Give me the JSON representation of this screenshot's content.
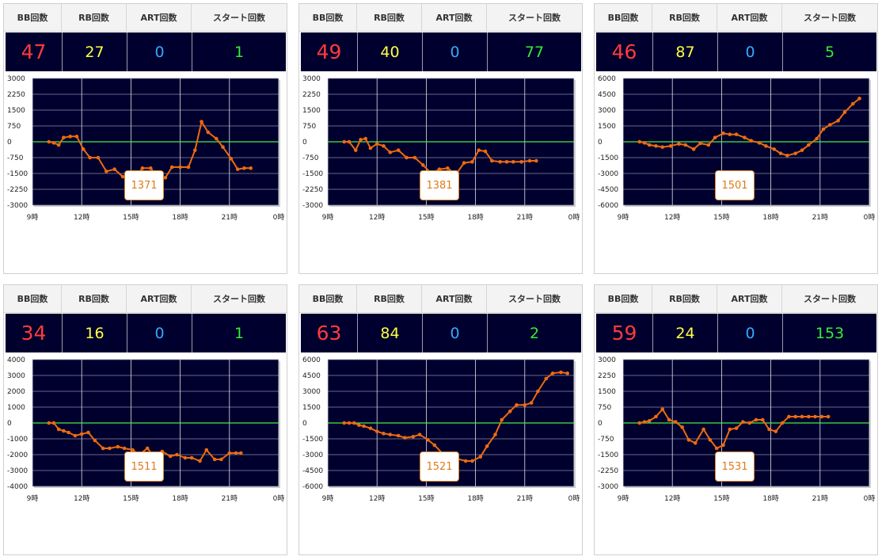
{
  "headers": [
    "BB回数",
    "RB回数",
    "ART回数",
    "スタート回数"
  ],
  "x_tick_labels": [
    "9時",
    "12時",
    "15時",
    "18時",
    "21時",
    "0時"
  ],
  "colors": {
    "panel_bg": "#00002e",
    "bb": "#ff3b3b",
    "rb": "#ffff44",
    "art": "#33aaff",
    "start": "#33ee33",
    "line": "#ee6a10",
    "zero_line": "#44ee44",
    "button": "#e07a1a"
  },
  "machines": [
    {
      "id": "1371",
      "bb": "47",
      "rb": "27",
      "art": "0",
      "start": "1"
    },
    {
      "id": "1381",
      "bb": "49",
      "rb": "40",
      "art": "0",
      "start": "77"
    },
    {
      "id": "1501",
      "bb": "46",
      "rb": "87",
      "art": "0",
      "start": "5"
    },
    {
      "id": "1511",
      "bb": "34",
      "rb": "16",
      "art": "0",
      "start": "1"
    },
    {
      "id": "1521",
      "bb": "63",
      "rb": "84",
      "art": "0",
      "start": "2"
    },
    {
      "id": "1531",
      "bb": "59",
      "rb": "24",
      "art": "0",
      "start": "153"
    }
  ],
  "chart_data": [
    {
      "type": "line",
      "xlabel": "",
      "ylabel": "",
      "x_range_hours": [
        9,
        24
      ],
      "ylim": [
        -3000,
        3000
      ],
      "y_ticks": [
        3000,
        2250,
        1500,
        750,
        0,
        -750,
        -1500,
        -2250,
        -3000
      ],
      "x": [
        10,
        10.3,
        10.6,
        10.9,
        11.3,
        11.7,
        12.1,
        12.5,
        13,
        13.5,
        14,
        14.5,
        15,
        15.3,
        15.7,
        16.2,
        16.6,
        17.1,
        17.5,
        18.0,
        18.5,
        18.9,
        19.3,
        19.7,
        20.2,
        20.6,
        21.1,
        21.5,
        21.9,
        22.3
      ],
      "series": [
        {
          "values": [
            0,
            -50,
            -150,
            200,
            250,
            250,
            -350,
            -750,
            -750,
            -1400,
            -1300,
            -1650,
            -1850,
            -1650,
            -1250,
            -1250,
            -1650,
            -1700,
            -1200,
            -1200,
            -1200,
            -400,
            950,
            450,
            150,
            -250,
            -800,
            -1300,
            -1250,
            -1250
          ]
        }
      ]
    },
    {
      "type": "line",
      "xlabel": "",
      "ylabel": "",
      "x_range_hours": [
        9,
        24
      ],
      "ylim": [
        -3000,
        3000
      ],
      "y_ticks": [
        3000,
        2250,
        1500,
        750,
        0,
        -750,
        -1500,
        -2250,
        -3000
      ],
      "x": [
        10,
        10.3,
        10.7,
        11,
        11.3,
        11.6,
        12,
        12.4,
        12.8,
        13.3,
        13.8,
        14.3,
        14.8,
        15.3,
        15.8,
        16.3,
        16.8,
        17.3,
        17.8,
        18.2,
        18.6,
        19,
        19.5,
        19.9,
        20.3,
        20.8,
        21.3,
        21.7
      ],
      "series": [
        {
          "values": [
            0,
            0,
            -400,
            100,
            150,
            -300,
            -100,
            -200,
            -500,
            -400,
            -750,
            -750,
            -1100,
            -1500,
            -1300,
            -1250,
            -1550,
            -1000,
            -950,
            -400,
            -450,
            -900,
            -950,
            -950,
            -950,
            -950,
            -900,
            -900
          ]
        }
      ]
    },
    {
      "type": "line",
      "xlabel": "",
      "ylabel": "",
      "x_range_hours": [
        9,
        24
      ],
      "ylim": [
        -6000,
        6000
      ],
      "y_ticks": [
        6000,
        4500,
        3000,
        1500,
        0,
        -1500,
        -3000,
        -4500,
        -6000
      ],
      "x": [
        10,
        10.3,
        10.6,
        11,
        11.4,
        11.9,
        12.4,
        12.8,
        13.3,
        13.7,
        14.2,
        14.6,
        15.1,
        15.5,
        15.9,
        16.4,
        16.8,
        17.3,
        17.7,
        18.2,
        18.6,
        19.0,
        19.5,
        19.9,
        20.3,
        20.8,
        21.2,
        21.6,
        22.1,
        22.5,
        23.0,
        23.4
      ],
      "series": [
        {
          "values": [
            0,
            -100,
            -300,
            -400,
            -500,
            -400,
            -200,
            -300,
            -700,
            -150,
            -300,
            400,
            800,
            700,
            700,
            400,
            100,
            -100,
            -400,
            -700,
            -1100,
            -1300,
            -1100,
            -800,
            -300,
            300,
            1200,
            1600,
            2000,
            2800,
            3600,
            4100
          ]
        }
      ]
    },
    {
      "type": "line",
      "xlabel": "",
      "ylabel": "",
      "x_range_hours": [
        9,
        24
      ],
      "ylim": [
        -4000,
        4000
      ],
      "y_ticks": [
        4000,
        3000,
        2000,
        1000,
        0,
        -1000,
        -2000,
        -3000,
        -4000
      ],
      "x": [
        10,
        10.3,
        10.6,
        10.9,
        11.2,
        11.6,
        12.0,
        12.4,
        12.8,
        13.3,
        13.7,
        14.2,
        14.6,
        15.1,
        15.5,
        16.0,
        16.4,
        16.9,
        17.4,
        17.8,
        18.3,
        18.7,
        19.2,
        19.6,
        20.1,
        20.5,
        21.0,
        21.4,
        21.7
      ],
      "series": [
        {
          "values": [
            0,
            0,
            -400,
            -500,
            -600,
            -800,
            -700,
            -600,
            -1100,
            -1600,
            -1600,
            -1500,
            -1600,
            -1700,
            -2000,
            -1600,
            -2100,
            -1800,
            -2100,
            -2000,
            -2200,
            -2200,
            -2400,
            -1700,
            -2300,
            -2300,
            -1900,
            -1900,
            -1900
          ]
        }
      ]
    },
    {
      "type": "line",
      "xlabel": "",
      "ylabel": "",
      "x_range_hours": [
        9,
        24
      ],
      "ylim": [
        -6000,
        6000
      ],
      "y_ticks": [
        6000,
        4500,
        3000,
        1500,
        0,
        -1500,
        -3000,
        -4500,
        -6000
      ],
      "x": [
        10,
        10.3,
        10.6,
        10.9,
        11.2,
        11.6,
        12.0,
        12.4,
        12.8,
        13.3,
        13.7,
        14.2,
        14.6,
        15.1,
        15.5,
        16.0,
        16.4,
        16.9,
        17.4,
        17.8,
        18.3,
        18.7,
        19.2,
        19.6,
        20.1,
        20.5,
        21.0,
        21.4,
        21.8,
        22.3,
        22.7,
        23.2,
        23.6
      ],
      "series": [
        {
          "values": [
            0,
            0,
            0,
            -200,
            -300,
            -500,
            -800,
            -1000,
            -1100,
            -1200,
            -1400,
            -1300,
            -1100,
            -1600,
            -2100,
            -2900,
            -3100,
            -3400,
            -3600,
            -3600,
            -3200,
            -2200,
            -1100,
            300,
            1100,
            1700,
            1700,
            1900,
            3000,
            4200,
            4700,
            4800,
            4700
          ]
        }
      ]
    },
    {
      "type": "line",
      "xlabel": "",
      "ylabel": "",
      "x_range_hours": [
        9,
        24
      ],
      "ylim": [
        -3000,
        3000
      ],
      "y_ticks": [
        3000,
        2250,
        1500,
        750,
        0,
        -750,
        -1500,
        -2250,
        -3000
      ],
      "x": [
        10,
        10.3,
        10.6,
        11,
        11.4,
        11.8,
        12.2,
        12.6,
        13.0,
        13.4,
        13.9,
        14.3,
        14.7,
        15.1,
        15.5,
        15.9,
        16.3,
        16.7,
        17.1,
        17.5,
        17.9,
        18.3,
        18.7,
        19.1,
        19.5,
        19.9,
        20.3,
        20.7,
        21.1,
        21.5
      ],
      "series": [
        {
          "values": [
            0,
            50,
            100,
            300,
            650,
            150,
            50,
            -200,
            -800,
            -950,
            -300,
            -800,
            -1200,
            -1050,
            -300,
            -250,
            50,
            0,
            150,
            150,
            -300,
            -400,
            0,
            300,
            300,
            300,
            300,
            300,
            300,
            300
          ]
        }
      ]
    }
  ]
}
